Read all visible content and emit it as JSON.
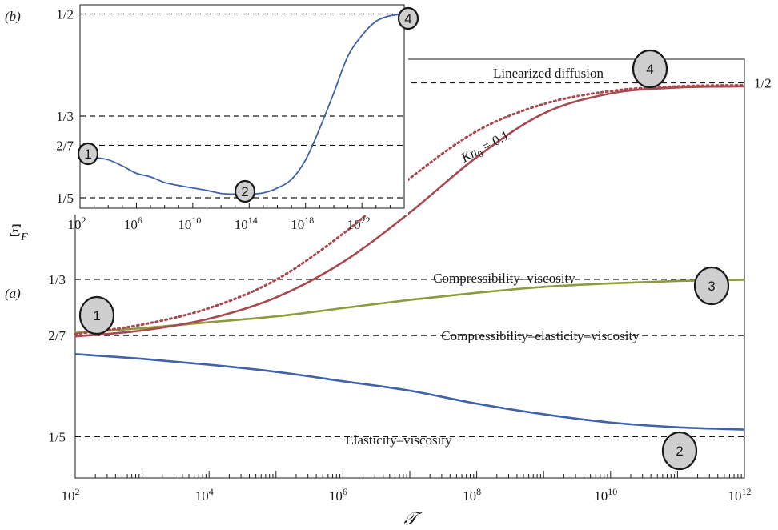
{
  "colors": {
    "blue": "#3f62a8",
    "red": "#a8484f",
    "olive": "#8f9a3a",
    "badge_fill": "#cfcfcf",
    "frame": "#1a1a1a"
  },
  "chart_data": [
    {
      "panel": "(a)",
      "type": "line",
      "xscale": "log",
      "xlim": [
        100,
        1000000000000.0
      ],
      "ylim": [
        0.165,
        0.52
      ],
      "xlabel": "𝒯",
      "ylabel": "Ξ_F",
      "xticks": [
        {
          "v": 100,
          "b": "10",
          "e": "2"
        },
        {
          "v": 10000.0,
          "b": "10",
          "e": "4"
        },
        {
          "v": 1000000.0,
          "b": "10",
          "e": "6"
        },
        {
          "v": 100000000.0,
          "b": "10",
          "e": "8"
        },
        {
          "v": 10000000000.0,
          "b": "10",
          "e": "10"
        },
        {
          "v": 1000000000000.0,
          "b": "10",
          "e": "12"
        }
      ],
      "yticks": [
        {
          "v": 0.2,
          "label": "1/5"
        },
        {
          "v": 0.2857,
          "label": "2/7"
        },
        {
          "v": 0.3333,
          "label": "1/3"
        }
      ],
      "right_label": {
        "v": 0.5,
        "label": "1/2"
      },
      "reference_lines": [
        {
          "y": 0.5,
          "label": "Linearized diffusion"
        },
        {
          "y": 0.3333,
          "label": "Compressibility–viscosity"
        },
        {
          "y": 0.2857,
          "label": "Compressibility–elasticity–viscosity"
        },
        {
          "y": 0.2,
          "label": "Elasticity–viscosity"
        }
      ],
      "series": [
        {
          "key": "blue",
          "style": "solid",
          "x": [
            100,
            1000,
            10000.0,
            100000.0,
            1000000.0,
            10000000.0,
            100000000.0,
            1000000000.0,
            10000000000.0,
            100000000000.0,
            1000000000000.0
          ],
          "y": [
            0.27,
            0.266,
            0.261,
            0.255,
            0.247,
            0.239,
            0.228,
            0.219,
            0.212,
            0.208,
            0.206
          ]
        },
        {
          "key": "olive",
          "style": "solid",
          "x": [
            100,
            1000,
            10000.0,
            100000.0,
            1000000.0,
            10000000.0,
            100000000.0,
            1000000000.0,
            10000000000.0,
            100000000000.0,
            1000000000000.0
          ],
          "y": [
            0.288,
            0.292,
            0.297,
            0.302,
            0.309,
            0.316,
            0.322,
            0.327,
            0.33,
            0.332,
            0.333
          ]
        },
        {
          "key": "red",
          "style": "solid",
          "x": [
            100,
            1000,
            10000.0,
            100000.0,
            1000000.0,
            10000000.0,
            100000000.0,
            1000000000.0,
            10000000000.0,
            100000000000.0,
            1000000000000.0
          ],
          "y": [
            0.285,
            0.29,
            0.3,
            0.318,
            0.348,
            0.39,
            0.437,
            0.474,
            0.491,
            0.496,
            0.497
          ]
        },
        {
          "key": "red",
          "style": "dotted",
          "name": "Kn0 = 0.1",
          "x": [
            100,
            1000,
            10000.0,
            100000.0,
            1000000.0,
            10000000.0,
            100000000.0,
            1000000000.0,
            10000000000.0,
            100000000000.0,
            1000000000000.0
          ],
          "y": [
            0.287,
            0.295,
            0.309,
            0.333,
            0.372,
            0.419,
            0.459,
            0.482,
            0.493,
            0.497,
            0.498
          ]
        }
      ],
      "badges": [
        {
          "label": "1"
        },
        {
          "label": "2"
        },
        {
          "label": "3"
        },
        {
          "label": "4"
        }
      ],
      "curve_label": {
        "base": "Kn",
        "sub": "0",
        "rest": " = 0.1"
      },
      "panel_label": "(a)"
    },
    {
      "panel": "(b)",
      "type": "line",
      "xscale": "log",
      "xlim": [
        100,
        1e+25
      ],
      "ylim": [
        0.183,
        0.515
      ],
      "xticks": [
        {
          "v": 100,
          "b": "10",
          "e": "2"
        },
        {
          "v": 1000000.0,
          "b": "10",
          "e": "6"
        },
        {
          "v": 10000000000.0,
          "b": "10",
          "e": "10"
        },
        {
          "v": 100000000000000.0,
          "b": "10",
          "e": "14"
        },
        {
          "v": 1e+18,
          "b": "10",
          "e": "18"
        },
        {
          "v": 1e+22,
          "b": "10",
          "e": "22"
        }
      ],
      "yticks": [
        {
          "v": 0.2,
          "label": "1/5"
        },
        {
          "v": 0.2857,
          "label": "2/7"
        },
        {
          "v": 0.3333,
          "label": "1/3"
        },
        {
          "v": 0.5,
          "label": "1/2"
        }
      ],
      "series": [
        {
          "key": "blue",
          "style": "solid",
          "x": [
            100,
            1000,
            10000.0,
            100000.0,
            1000000.0,
            10000000.0,
            100000000.0,
            1000000000.0,
            10000000000.0,
            100000000000.0,
            1000000000000.0,
            10000000000000.0,
            100000000000000.0,
            1000000000000000.0,
            1e+16,
            1e+17,
            1e+18,
            1e+19,
            1e+20,
            1e+21,
            1e+22,
            1e+23,
            1e+24,
            1e+25
          ],
          "y": [
            0.27,
            0.266,
            0.262,
            0.252,
            0.24,
            0.234,
            0.225,
            0.22,
            0.216,
            0.212,
            0.207,
            0.206,
            0.206,
            0.208,
            0.216,
            0.23,
            0.262,
            0.313,
            0.371,
            0.431,
            0.465,
            0.488,
            0.497,
            0.5
          ]
        }
      ],
      "badges": [
        {
          "label": "1"
        },
        {
          "label": "2"
        },
        {
          "label": "4"
        }
      ],
      "panel_label": "(b)"
    }
  ]
}
